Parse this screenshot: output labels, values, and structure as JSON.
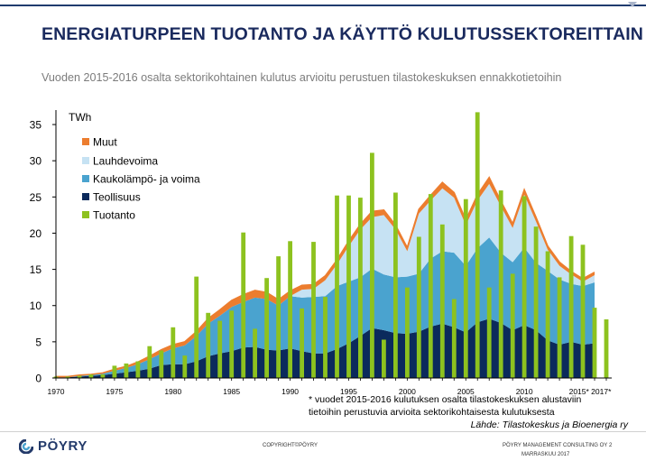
{
  "header": {
    "title": "ENERGIATURPEEN TUOTANTO JA KÄYTTÖ KULUTUSSEKTOREITTAIN",
    "subtitle": "Vuoden 2015-2016 osalta sektorikohtainen kulutus arvioitu perustuen tilastokeskuksen ennakkotietoihin"
  },
  "chart_data": {
    "type": "area",
    "ylabel": "TWh",
    "ylim": [
      0,
      37
    ],
    "yticks": [
      0,
      5,
      10,
      15,
      20,
      25,
      30,
      35
    ],
    "xticks": [
      "1970",
      "1975",
      "1980",
      "1985",
      "1990",
      "1995",
      "2000",
      "2005",
      "2010",
      "2015* 2017*"
    ],
    "grid": false,
    "legend_position": "top-left",
    "colors": {
      "Muut": "#ec7d2f",
      "Lauhdevoima": "#c6e2f3",
      "Kaukolämpö- ja voima": "#4aa3cf",
      "Teollisuus": "#0b2a5c",
      "Tuotanto": "#8dc21f"
    },
    "legend": [
      "Muut",
      "Lauhdevoima",
      "Kaukolämpö- ja voima",
      "Teollisuus",
      "Tuotanto"
    ],
    "x": [
      1970,
      1971,
      1972,
      1973,
      1974,
      1975,
      1976,
      1977,
      1978,
      1979,
      1980,
      1981,
      1982,
      1983,
      1984,
      1985,
      1986,
      1987,
      1988,
      1989,
      1990,
      1991,
      1992,
      1993,
      1994,
      1995,
      1996,
      1997,
      1998,
      1999,
      2000,
      2001,
      2002,
      2003,
      2004,
      2005,
      2006,
      2007,
      2008,
      2009,
      2010,
      2011,
      2012,
      2013,
      2014,
      2015,
      2016,
      2017
    ],
    "series": [
      {
        "name": "Teollisuus",
        "kind": "area",
        "values": [
          0.1,
          0.1,
          0.2,
          0.3,
          0.4,
          0.6,
          0.8,
          1.0,
          1.3,
          1.8,
          1.9,
          1.9,
          2.3,
          3.0,
          3.4,
          3.7,
          4.2,
          4.3,
          3.9,
          3.8,
          4.1,
          3.7,
          3.4,
          3.4,
          4.0,
          4.8,
          5.8,
          6.9,
          6.6,
          6.2,
          6.1,
          6.4,
          7.1,
          7.5,
          7.0,
          6.3,
          7.7,
          8.2,
          7.6,
          6.6,
          7.3,
          6.6,
          5.2,
          4.6,
          5.0,
          4.6,
          4.8,
          null
        ]
      },
      {
        "name": "Kaukolämpö- ja voima",
        "kind": "area",
        "values": [
          0.0,
          0.0,
          0.1,
          0.1,
          0.2,
          0.4,
          0.6,
          0.9,
          1.3,
          1.6,
          2.2,
          2.6,
          3.5,
          4.5,
          5.2,
          6.1,
          6.3,
          6.8,
          7.0,
          6.2,
          7.2,
          7.4,
          7.8,
          7.9,
          8.7,
          8.5,
          8.1,
          8.2,
          7.7,
          7.7,
          7.9,
          8.0,
          9.4,
          10.0,
          10.3,
          9.2,
          10.2,
          11.2,
          9.7,
          9.4,
          10.7,
          9.3,
          9.6,
          9.0,
          8.0,
          8.1,
          8.4,
          null
        ]
      },
      {
        "name": "Lauhdevoima",
        "kind": "area",
        "values": [
          0,
          0,
          0,
          0,
          0,
          0,
          0,
          0,
          0,
          0,
          0,
          0,
          0,
          0,
          0,
          0,
          0,
          0,
          0,
          0,
          0,
          1.1,
          1.1,
          2.2,
          3.0,
          4.9,
          6.6,
          7.1,
          8.2,
          6.6,
          3.5,
          8.3,
          8.0,
          8.7,
          7.6,
          5.6,
          6.6,
          7.4,
          6.4,
          4.7,
          7.3,
          5.7,
          2.9,
          1.9,
          1.3,
          0.6,
          1.0,
          null
        ]
      },
      {
        "name": "Muut",
        "kind": "area",
        "values": [
          0.1,
          0.1,
          0.1,
          0.1,
          0.1,
          0.2,
          0.2,
          0.3,
          0.4,
          0.5,
          0.5,
          0.5,
          0.6,
          0.7,
          0.8,
          0.9,
          1.0,
          1.0,
          0.9,
          0.8,
          0.7,
          0.6,
          0.6,
          0.6,
          0.6,
          0.7,
          0.7,
          0.8,
          0.7,
          0.6,
          0.5,
          0.6,
          0.7,
          0.8,
          0.7,
          0.7,
          0.8,
          0.9,
          0.7,
          0.6,
          0.7,
          0.6,
          0.5,
          0.5,
          0.4,
          0.4,
          0.4,
          null
        ]
      },
      {
        "name": "Tuotanto",
        "kind": "bar",
        "values": [
          0.2,
          0.2,
          0.3,
          0.5,
          0.5,
          1.7,
          2.0,
          2.3,
          4.4,
          3.8,
          7.0,
          3.1,
          14.0,
          9.0,
          7.9,
          9.3,
          20.1,
          6.8,
          13.8,
          16.8,
          18.9,
          9.6,
          18.8,
          11.2,
          25.2,
          25.2,
          24.9,
          31.1,
          5.3,
          25.6,
          12.5,
          19.5,
          25.4,
          21.2,
          10.9,
          24.7,
          36.7,
          12.5,
          25.9,
          14.4,
          25.1,
          20.9,
          17.5,
          13.9,
          19.6,
          18.4,
          9.7,
          8.1
        ]
      }
    ],
    "footnote": "* vuodet 2015-2016 kulutuksen osalta tilastokeskuksen alustaviin tietoihin perustuvia arvioita sektorikohtaisesta kulutuksesta",
    "source": "Lähde: Tilastokeskus ja Bioenergia ry"
  },
  "footer": {
    "logo_text": "PÖYRY",
    "copyright": "COPYRIGHT©PÖYRY",
    "company": "PÖYRY MANAGEMENT CONSULTING OY",
    "page": "2",
    "date": "MARRASKUU 2017"
  }
}
